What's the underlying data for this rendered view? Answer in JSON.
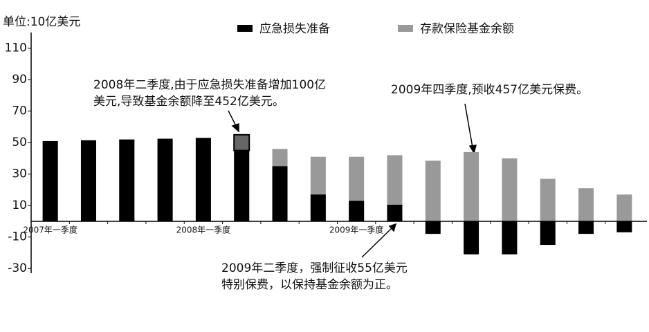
{
  "chart_data": {
    "type": "bar",
    "unit_label": "单位:10亿美元",
    "categories": [
      "2007年一季度",
      null,
      null,
      null,
      "2008年一季度",
      null,
      null,
      null,
      "2009年一季度",
      null,
      null,
      null,
      null,
      null,
      null,
      null
    ],
    "series": [
      {
        "name": "应急损失准备",
        "color": "#000000",
        "values": [
          51,
          51.5,
          52,
          52.5,
          53,
          55,
          35,
          17,
          13,
          10.5,
          -8,
          -21,
          -21,
          -15,
          -8,
          -7
        ]
      },
      {
        "name": "存款保险基金余额",
        "color": "#999999",
        "values": [
          51,
          51.5,
          52,
          52.5,
          53,
          45,
          46,
          41,
          41,
          42,
          38.5,
          44,
          40,
          27,
          21,
          17
        ]
      }
    ],
    "ylim": [
      -33,
      120
    ],
    "yticks": [
      -30,
      -10,
      10,
      30,
      50,
      70,
      90,
      110
    ],
    "highlight_color": "#666666",
    "annotations": [
      {
        "lines": [
          "2008年二季度,由于应急损失准备增加100亿",
          "美元,导致基金余额降至452亿美元。"
        ]
      },
      {
        "lines": [
          "2009年四季度,预收457亿美元保费。"
        ]
      },
      {
        "lines": [
          "2009年二季度，强制征收55亿美元",
          "特别保费，以保持基金余额为正。"
        ]
      }
    ]
  }
}
